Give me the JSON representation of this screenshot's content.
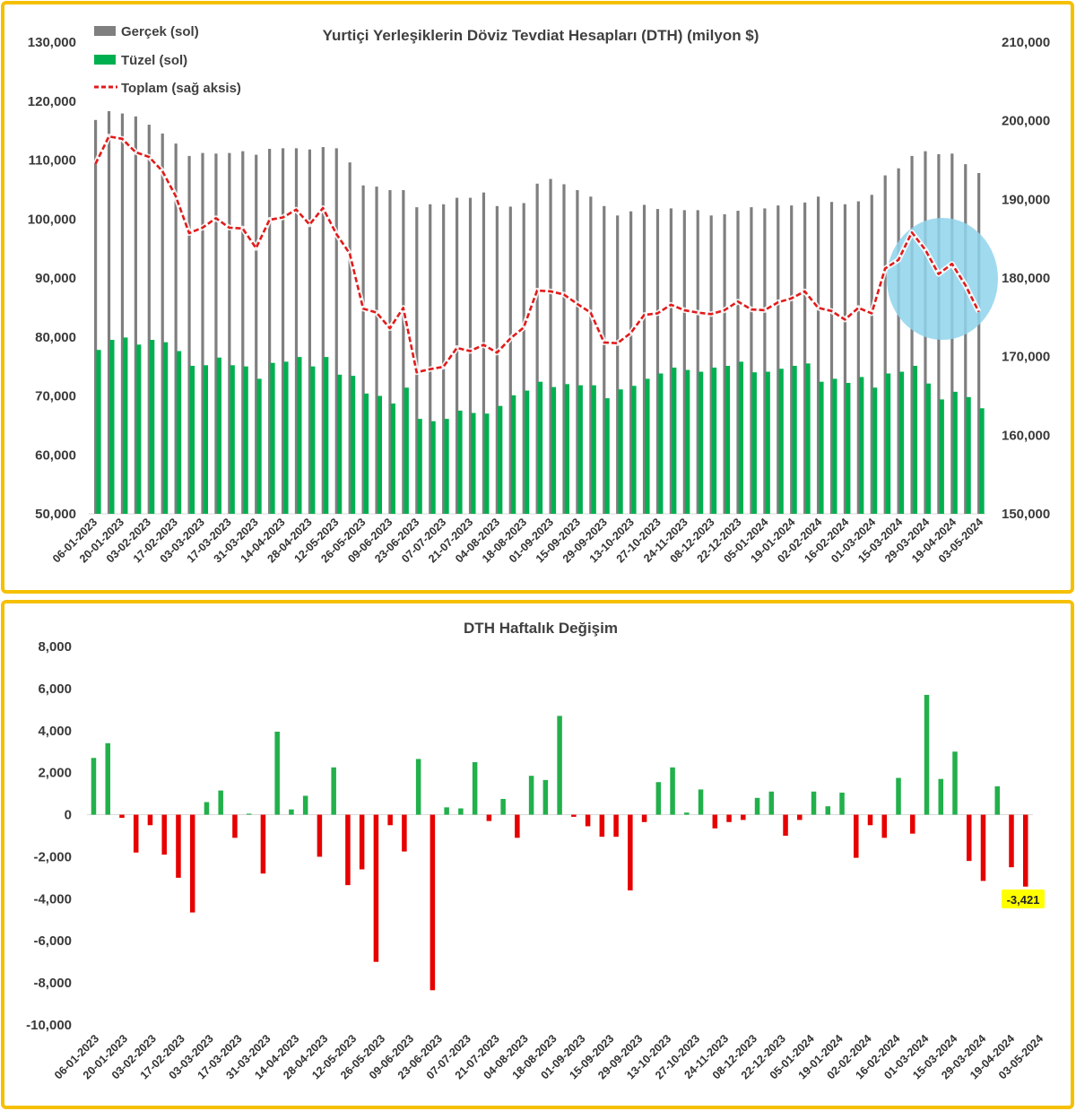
{
  "chart_data": [
    {
      "type": "bar+line",
      "title": "Yurtiçi Yerleşiklerin Döviz Tevdiat Hesapları (DTH) (milyon $)",
      "legend_position": "top-left",
      "legend": [
        {
          "name": "Gerçek (sol)",
          "color": "#7f7f7f"
        },
        {
          "name": "Tüzel (sol)",
          "color": "#00b050"
        },
        {
          "name": "Toplam (sağ aksis)",
          "color": "#e11b1b"
        }
      ],
      "x_tick_labels": [
        "06-01-2023",
        "20-01-2023",
        "03-02-2023",
        "17-02-2023",
        "03-03-2023",
        "17-03-2023",
        "31-03-2023",
        "14-04-2023",
        "28-04-2023",
        "12-05-2023",
        "26-05-2023",
        "09-06-2023",
        "23-06-2023",
        "07-07-2023",
        "21-07-2023",
        "04-08-2023",
        "18-08-2023",
        "01-09-2023",
        "15-09-2023",
        "29-09-2023",
        "13-10-2023",
        "27-10-2023",
        "24-11-2023",
        "08-12-2023",
        "22-12-2023",
        "05-01-2024",
        "19-01-2024",
        "02-02-2024",
        "16-02-2024",
        "01-03-2024",
        "15-03-2024",
        "29-03-2024",
        "19-04-2024",
        "03-05-2024"
      ],
      "y_left_ticks": [
        "50,000",
        "60,000",
        "70,000",
        "80,000",
        "90,000",
        "100,000",
        "110,000",
        "120,000",
        "130,000"
      ],
      "y_right_ticks": [
        "150,000",
        "160,000",
        "170,000",
        "180,000",
        "190,000",
        "200,000",
        "210,000"
      ],
      "ylim_left": [
        50000,
        130000
      ],
      "ylim_right": [
        150000,
        210000
      ],
      "series": [
        {
          "name": "Gerçek (sol)",
          "axis": "left",
          "kind": "bar",
          "color": "#7f7f7f",
          "values": [
            116800,
            118300,
            117900,
            117400,
            116000,
            114500,
            112800,
            110700,
            111200,
            111100,
            111200,
            111500,
            110900,
            111900,
            112000,
            112000,
            111800,
            112200,
            112000,
            109600,
            105700,
            105500,
            104900,
            104900,
            102000,
            102500,
            102500,
            103600,
            103600,
            104500,
            102200,
            102100,
            102700,
            106000,
            106800,
            105900,
            104900,
            103800,
            102200,
            100600,
            101300,
            102400,
            101700,
            101800,
            101500,
            101500,
            100600,
            100800,
            101400,
            102000,
            101800,
            102300,
            102300,
            102800,
            103800,
            102900,
            102500,
            103000,
            104100,
            107400,
            108600,
            110700,
            111500,
            111000,
            111100,
            109300,
            107800
          ]
        },
        {
          "name": "Tüzel (sol)",
          "axis": "left",
          "kind": "bar",
          "color": "#00b050",
          "values": [
            77800,
            79500,
            79900,
            78700,
            79500,
            79100,
            77600,
            75100,
            75200,
            76500,
            75200,
            75000,
            72900,
            75600,
            75800,
            76600,
            75000,
            76600,
            73600,
            73400,
            70400,
            70000,
            68700,
            71400,
            66100,
            65700,
            66100,
            67500,
            67100,
            67000,
            68300,
            70100,
            70900,
            72400,
            71500,
            72000,
            71800,
            71800,
            69600,
            71100,
            71700,
            72900,
            73800,
            74800,
            74400,
            74100,
            74800,
            75100,
            75800,
            74000,
            74100,
            74600,
            75100,
            75500,
            72400,
            72900,
            72200,
            73200,
            71400,
            73800,
            74100,
            75100,
            72100,
            69400,
            70700,
            69800,
            67900
          ]
        },
        {
          "name": "Toplam (sağ aksis)",
          "axis": "right",
          "kind": "line",
          "color": "#e11b1b",
          "values": [
            194500,
            198000,
            197700,
            196000,
            195400,
            193600,
            190400,
            185700,
            186400,
            187600,
            186400,
            186300,
            183800,
            187400,
            187700,
            188700,
            186800,
            188900,
            185600,
            183100,
            176100,
            175600,
            173600,
            176200,
            168000,
            168400,
            168700,
            171100,
            170700,
            171500,
            170500,
            172300,
            173700,
            178400,
            178300,
            177900,
            176700,
            175600,
            171800,
            171700,
            173000,
            175300,
            175500,
            176600,
            175900,
            175600,
            175400,
            175900,
            177000,
            176000,
            175900,
            176900,
            177400,
            178300,
            176200,
            175800,
            174700,
            176200,
            175500,
            181200,
            182300,
            185800,
            183600,
            180500,
            181800,
            179100,
            175700
          ]
        }
      ]
    },
    {
      "type": "bar",
      "title": "DTH Haftalık Değişim",
      "ylim": [
        -10000,
        8000
      ],
      "y_ticks": [
        "8,000",
        "6,000",
        "4,000",
        "2,000",
        "0",
        "-2,000",
        "-4,000",
        "-6,000",
        "-8,000",
        "-10,000"
      ],
      "x_tick_labels": [
        "06-01-2023",
        "20-01-2023",
        "03-02-2023",
        "17-02-2023",
        "03-03-2023",
        "17-03-2023",
        "31-03-2023",
        "14-04-2023",
        "28-04-2023",
        "12-05-2023",
        "26-05-2023",
        "09-06-2023",
        "23-06-2023",
        "07-07-2023",
        "21-07-2023",
        "04-08-2023",
        "18-08-2023",
        "01-09-2023",
        "15-09-2023",
        "29-09-2023",
        "13-10-2023",
        "27-10-2023",
        "24-11-2023",
        "08-12-2023",
        "22-12-2023",
        "05-01-2024",
        "19-01-2024",
        "02-02-2024",
        "16-02-2024",
        "01-03-2024",
        "15-03-2024",
        "29-03-2024",
        "19-04-2024",
        "03-05-2024"
      ],
      "positive_color": "#22b04b",
      "negative_color": "#e60000",
      "values": [
        2700,
        3400,
        -150,
        -1800,
        -500,
        -1900,
        -3000,
        -4650,
        600,
        1150,
        -1100,
        50,
        -2800,
        3950,
        250,
        900,
        -2000,
        2250,
        -3350,
        -2600,
        -7000,
        -500,
        -1750,
        2650,
        -8350,
        350,
        300,
        2500,
        -300,
        750,
        -1100,
        1850,
        1650,
        4700,
        -100,
        -550,
        -1050,
        -1050,
        -3600,
        -350,
        1550,
        2250,
        100,
        1200,
        -650,
        -350,
        -250,
        800,
        1100,
        -1000,
        -250,
        1100,
        400,
        1050,
        -2050,
        -500,
        -1100,
        1750,
        -900,
        5700,
        1700,
        3000,
        -2200,
        -3150,
        1350,
        -2500,
        -3421
      ],
      "highlight_label": "-3,421",
      "highlight_color": "#ffff00"
    }
  ]
}
